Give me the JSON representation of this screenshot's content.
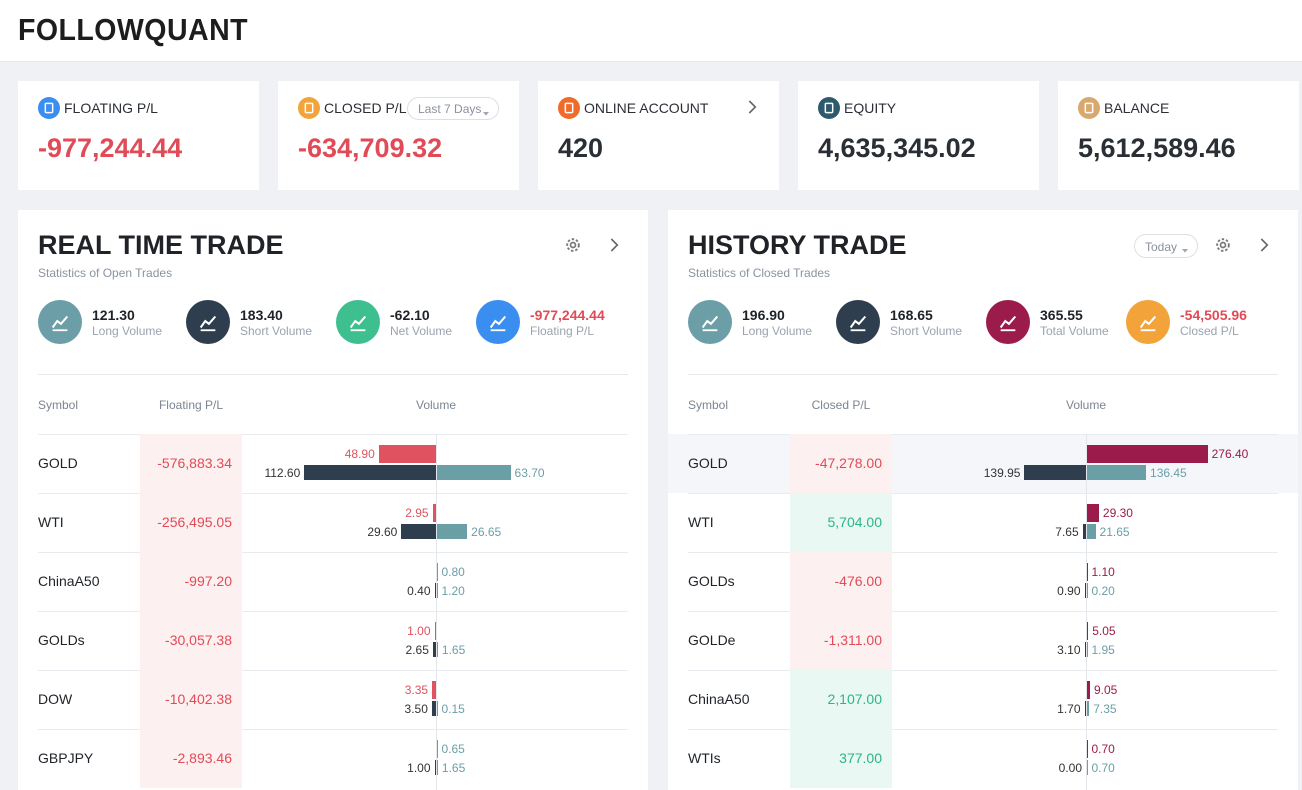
{
  "header": {
    "logo": "FOLLOWQUANT"
  },
  "cards": [
    {
      "label": "FLOATING P/L",
      "value": "-977,244.44"
    },
    {
      "label": "CLOSED P/L",
      "value": "-634,709.32",
      "filter": "Last 7 Days"
    },
    {
      "label": "ONLINE ACCOUNT",
      "value": "420"
    },
    {
      "label": "EQUITY",
      "value": "4,635,345.02"
    },
    {
      "label": "BALANCE",
      "value": "5,612,589.46"
    }
  ],
  "panels": [
    {
      "title": "REAL TIME TRADE",
      "subtitle": "Statistics of Open Trades",
      "stats": [
        {
          "value": "121.30",
          "label": "Long Volume"
        },
        {
          "value": "183.40",
          "label": "Short Volume"
        },
        {
          "value": "-62.10",
          "label": "Net Volume"
        },
        {
          "value": "-977,244.44",
          "label": "Floating P/L"
        }
      ],
      "columns": [
        "Symbol",
        "Floating P/L",
        "Volume"
      ],
      "rows": [
        {
          "symbol": "GOLD",
          "pl": "-576,883.34",
          "top": "48.90",
          "short": "112.60",
          "long": "63.70"
        },
        {
          "symbol": "WTI",
          "pl": "-256,495.05",
          "top": "2.95",
          "short": "29.60",
          "long": "26.65"
        },
        {
          "symbol": "ChinaA50",
          "pl": "-997.20",
          "top": "0.80",
          "short": "0.40",
          "long": "1.20"
        },
        {
          "symbol": "GOLDs",
          "pl": "-30,057.38",
          "top": "1.00",
          "short": "2.65",
          "long": "1.65"
        },
        {
          "symbol": "DOW",
          "pl": "-10,402.38",
          "top": "3.35",
          "short": "3.50",
          "long": "0.15"
        },
        {
          "symbol": "GBPJPY",
          "pl": "-2,893.46",
          "top": "0.65",
          "short": "1.00",
          "long": "1.65"
        }
      ]
    },
    {
      "title": "HISTORY TRADE",
      "subtitle": "Statistics of Closed Trades",
      "filter": "Today",
      "stats": [
        {
          "value": "196.90",
          "label": "Long Volume"
        },
        {
          "value": "168.65",
          "label": "Short Volume"
        },
        {
          "value": "365.55",
          "label": "Total Volume"
        },
        {
          "value": "-54,505.96",
          "label": "Closed P/L"
        }
      ],
      "columns": [
        "Symbol",
        "Closed P/L",
        "Volume"
      ],
      "rows": [
        {
          "symbol": "GOLD",
          "pl": "-47,278.00",
          "top": "276.40",
          "short": "139.95",
          "long": "136.45"
        },
        {
          "symbol": "WTI",
          "pl": "5,704.00",
          "top": "29.30",
          "short": "7.65",
          "long": "21.65"
        },
        {
          "symbol": "GOLDs",
          "pl": "-476.00",
          "top": "1.10",
          "short": "0.90",
          "long": "0.20"
        },
        {
          "symbol": "GOLDe",
          "pl": "-1,311.00",
          "top": "5.05",
          "short": "3.10",
          "long": "1.95"
        },
        {
          "symbol": "ChinaA50",
          "pl": "2,107.00",
          "top": "9.05",
          "short": "1.70",
          "long": "7.35"
        },
        {
          "symbol": "WTIs",
          "pl": "377.00",
          "top": "0.70",
          "short": "0.00",
          "long": "0.70"
        }
      ]
    }
  ]
}
